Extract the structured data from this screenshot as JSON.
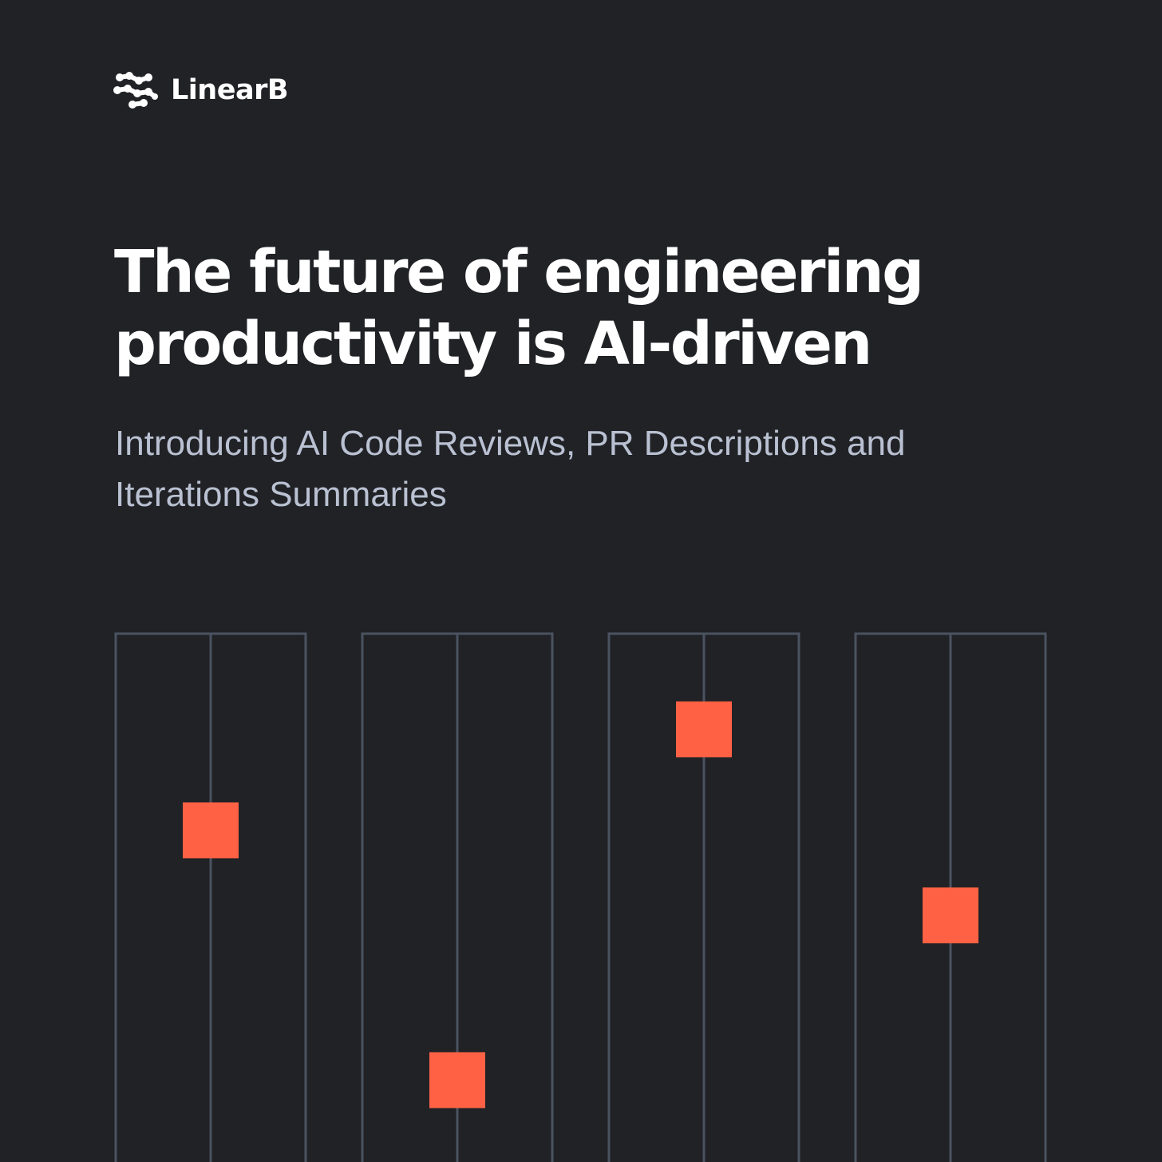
{
  "brand": {
    "name": "LinearB",
    "icon": "linearb-logo-icon"
  },
  "headline": "The future of engineering productivity is AI-driven",
  "subheadline": "Introducing AI Code Reviews, PR Descriptions and Iterations Summaries",
  "colors": {
    "background": "#212226",
    "headline": "#ffffff",
    "subheadline": "#b9c1d2",
    "track_line": "#4a5360",
    "marker": "#ff6144"
  },
  "sliders": [
    {
      "level": 0.37
    },
    {
      "level": 0.84
    },
    {
      "level": 0.18
    },
    {
      "level": 0.53
    }
  ]
}
